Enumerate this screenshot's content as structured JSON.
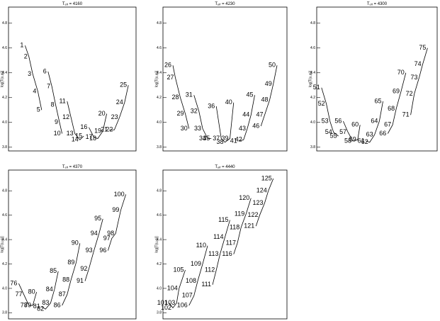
{
  "chart_data": [
    {
      "type": "scatter",
      "title": [
        "T",
        "eff",
        " = 4160"
      ],
      "ylabel": "log[T(u,φ)]",
      "xlim": [
        0,
        100
      ],
      "ylim": [
        3.77,
        4.93
      ],
      "yticks": [
        3.8,
        {
          "value": 4,
          "label": "4.0"
        },
        4.2,
        4.4,
        4.6,
        4.8
      ],
      "series": [
        {
          "labels": [
            1,
            2,
            3,
            4,
            5
          ],
          "x": [
            13,
            16,
            19,
            23,
            26
          ],
          "y": [
            4.62,
            4.53,
            4.39,
            4.25,
            4.1
          ]
        },
        {
          "labels": [
            6,
            7,
            8,
            9,
            10
          ],
          "x": [
            31,
            34,
            37,
            40,
            42
          ],
          "y": [
            4.41,
            4.29,
            4.14,
            4.0,
            3.91
          ]
        },
        {
          "labels": [
            11,
            12,
            13,
            14,
            15
          ],
          "x": [
            46,
            49,
            52,
            56,
            59
          ],
          "y": [
            4.17,
            4.04,
            3.91,
            3.86,
            3.89
          ]
        },
        {
          "labels": [
            16,
            17,
            18,
            19,
            20
          ],
          "x": [
            63,
            67,
            70,
            74,
            77
          ],
          "y": [
            3.96,
            3.88,
            3.87,
            3.93,
            4.07
          ]
        },
        {
          "labels": [
            21,
            22,
            23,
            24,
            25
          ],
          "x": [
            79,
            83,
            87,
            91,
            94
          ],
          "y": [
            3.94,
            3.94,
            4.04,
            4.16,
            4.3
          ]
        }
      ]
    },
    {
      "type": "scatter",
      "title": [
        "T",
        "eff",
        " = 4230"
      ],
      "ylabel": "log[T(u,φ)]",
      "xlim": [
        0,
        100
      ],
      "ylim": [
        3.77,
        4.93
      ],
      "yticks": [
        3.8,
        {
          "value": 4,
          "label": "4.0"
        },
        4.2,
        4.4,
        4.6,
        4.8
      ],
      "series": [
        {
          "labels": [
            26,
            27,
            28,
            29,
            30
          ],
          "x": [
            8,
            10,
            14,
            18,
            21
          ],
          "y": [
            4.46,
            4.36,
            4.2,
            4.07,
            3.95
          ]
        },
        {
          "labels": [
            31,
            32,
            33,
            34,
            35
          ],
          "x": [
            25,
            29,
            32,
            36,
            39
          ],
          "y": [
            4.22,
            4.09,
            3.95,
            3.87,
            3.87
          ]
        },
        {
          "labels": [
            36,
            37,
            38,
            39,
            40
          ],
          "x": [
            43,
            47,
            50,
            54,
            57
          ],
          "y": [
            4.13,
            3.87,
            3.84,
            3.87,
            4.16
          ]
        },
        {
          "labels": [
            41,
            42,
            43,
            44,
            45
          ],
          "x": [
            61,
            65,
            68,
            71,
            74
          ],
          "y": [
            3.85,
            3.86,
            3.95,
            4.06,
            4.22
          ]
        },
        {
          "labels": [
            46,
            47,
            48,
            49,
            50
          ],
          "x": [
            79,
            82,
            86,
            89,
            92
          ],
          "y": [
            3.97,
            4.06,
            4.18,
            4.31,
            4.46
          ]
        }
      ]
    },
    {
      "type": "scatter",
      "title": [
        "T",
        "eff",
        " = 4300"
      ],
      "ylabel": "log[T(u,φ)]",
      "xlim": [
        0,
        100
      ],
      "ylim": [
        3.77,
        4.93
      ],
      "yticks": [
        3.8,
        {
          "value": 4,
          "label": "4.0"
        },
        4.2,
        4.4,
        4.6,
        4.8
      ],
      "series": [
        {
          "labels": [
            51,
            52,
            53,
            54,
            55
          ],
          "x": [
            4,
            8,
            11,
            14,
            18
          ],
          "y": [
            4.28,
            4.15,
            4.01,
            3.92,
            3.89
          ]
        },
        {
          "labels": [
            56,
            57,
            58,
            59,
            60
          ],
          "x": [
            22,
            26,
            30,
            34,
            36
          ],
          "y": [
            4.01,
            3.92,
            3.85,
            3.86,
            3.98
          ]
        },
        {
          "labels": [
            61,
            62,
            63,
            64,
            65
          ],
          "x": [
            41,
            44,
            48,
            52,
            55
          ],
          "y": [
            3.85,
            3.84,
            3.9,
            4.01,
            4.17
          ]
        },
        {
          "labels": [
            66,
            67,
            68,
            69,
            70
          ],
          "x": [
            59,
            63,
            66,
            70,
            74
          ],
          "y": [
            3.91,
            3.98,
            4.11,
            4.25,
            4.4
          ]
        },
        {
          "labels": [
            71,
            72,
            73,
            74,
            75
          ],
          "x": [
            78,
            81,
            85,
            88,
            92
          ],
          "y": [
            4.06,
            4.23,
            4.36,
            4.47,
            4.6
          ]
        }
      ]
    },
    {
      "type": "scatter",
      "title": [
        "T",
        "eff",
        " = 4370"
      ],
      "ylabel": "log[T(u,φ)]",
      "xlim": [
        0,
        100
      ],
      "ylim": [
        3.75,
        4.97
      ],
      "yticks": [
        3.8,
        {
          "value": 4,
          "label": "4.0"
        },
        4.2,
        4.4,
        4.6,
        4.8
      ],
      "series": [
        {
          "labels": [
            76,
            77,
            78,
            79,
            80
          ],
          "x": [
            8,
            12,
            16,
            19,
            22
          ],
          "y": [
            4.04,
            3.95,
            3.86,
            3.86,
            3.97
          ]
        },
        {
          "labels": [
            81,
            82,
            83,
            84,
            85
          ],
          "x": [
            26,
            29,
            33,
            36,
            39
          ],
          "y": [
            3.85,
            3.83,
            3.88,
            3.99,
            4.14
          ]
        },
        {
          "labels": [
            86,
            87,
            88,
            89,
            90
          ],
          "x": [
            42,
            46,
            49,
            53,
            56
          ],
          "y": [
            3.86,
            3.95,
            4.07,
            4.21,
            4.37
          ]
        },
        {
          "labels": [
            91,
            92,
            93,
            94,
            95
          ],
          "x": [
            60,
            63,
            67,
            71,
            74
          ],
          "y": [
            4.06,
            4.16,
            4.31,
            4.45,
            4.57
          ]
        },
        {
          "labels": [
            96,
            97,
            98,
            99,
            100
          ],
          "x": [
            78,
            81,
            84,
            88,
            92
          ],
          "y": [
            4.31,
            4.41,
            4.45,
            4.64,
            4.77
          ]
        }
      ]
    },
    {
      "type": "scatter",
      "title": [
        "T",
        "eff",
        " = 4440"
      ],
      "ylabel": "log[T(u,φ)]",
      "xlim": [
        0,
        100
      ],
      "ylim": [
        3.75,
        4.97
      ],
      "yticks": [
        3.8,
        {
          "value": 4,
          "label": "4.0"
        },
        4.2,
        4.4,
        4.6,
        4.8
      ],
      "series": [
        {
          "labels": [
            101,
            102,
            103,
            104,
            105
          ],
          "x": [
            5,
            8,
            11,
            13,
            18
          ],
          "y": [
            3.88,
            3.84,
            3.88,
            4.0,
            4.15
          ]
        },
        {
          "labels": [
            106,
            107,
            108,
            109,
            110
          ],
          "x": [
            21,
            25,
            28,
            32,
            36
          ],
          "y": [
            3.86,
            3.94,
            4.06,
            4.2,
            4.35
          ]
        },
        {
          "labels": [
            111,
            112,
            113,
            114,
            115
          ],
          "x": [
            40,
            43,
            46,
            50,
            54
          ],
          "y": [
            4.03,
            4.15,
            4.28,
            4.42,
            4.56
          ]
        },
        {
          "labels": [
            116,
            117,
            118,
            119,
            120
          ],
          "x": [
            57,
            60,
            63,
            67,
            71
          ],
          "y": [
            4.28,
            4.37,
            4.5,
            4.61,
            4.74
          ]
        },
        {
          "labels": [
            121,
            122,
            123,
            124,
            125
          ],
          "x": [
            75,
            78,
            82,
            85,
            89
          ],
          "y": [
            4.51,
            4.6,
            4.7,
            4.8,
            4.9
          ]
        }
      ]
    }
  ]
}
